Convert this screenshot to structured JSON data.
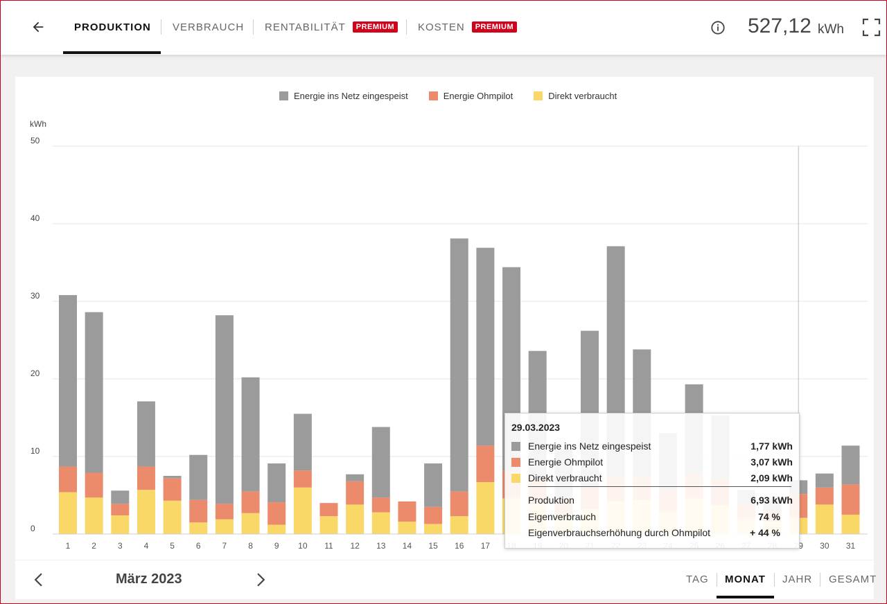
{
  "header": {
    "tabs": [
      {
        "label": "PRODUKTION",
        "badge": ""
      },
      {
        "label": "VERBRAUCH",
        "badge": ""
      },
      {
        "label": "RENTABILITÄT",
        "badge": "PREMIUM"
      },
      {
        "label": "KOSTEN",
        "badge": "PREMIUM"
      }
    ],
    "total_value": "527,12",
    "total_unit": "kWh"
  },
  "legend": [
    {
      "label": "Energie ins Netz eingespeist",
      "color": "#9b9b9b"
    },
    {
      "label": "Energie Ohmpilot",
      "color": "#ec8a6c"
    },
    {
      "label": "Direkt verbraucht",
      "color": "#f9d867"
    }
  ],
  "chart_data": {
    "type": "bar",
    "stacked": true,
    "ylabel": "kWh",
    "ylim": [
      0,
      50
    ],
    "yticks": [
      "0",
      "10",
      "20",
      "30",
      "40",
      "50"
    ],
    "categories": [
      "1",
      "2",
      "3",
      "4",
      "5",
      "6",
      "7",
      "8",
      "9",
      "10",
      "11",
      "12",
      "13",
      "14",
      "15",
      "16",
      "17",
      "18",
      "19",
      "20",
      "21",
      "22",
      "23",
      "24",
      "25",
      "26",
      "27",
      "28",
      "29",
      "30",
      "31"
    ],
    "series": [
      {
        "name": "Direkt verbraucht",
        "color": "#f9d867",
        "values": [
          5.4,
          4.7,
          2.4,
          5.7,
          4.3,
          1.5,
          1.9,
          2.7,
          1.2,
          6.0,
          2.3,
          3.8,
          2.8,
          1.6,
          1.3,
          2.3,
          6.7,
          4.6,
          3.9,
          2.6,
          3.2,
          4.2,
          4.4,
          2.8,
          4.6,
          3.7,
          2.0,
          1.6,
          2.09,
          3.8,
          2.5
        ]
      },
      {
        "name": "Energie Ohmpilot",
        "color": "#ec8a6c",
        "values": [
          3.3,
          3.2,
          1.5,
          3.0,
          2.9,
          2.9,
          2.0,
          2.8,
          2.9,
          2.2,
          1.7,
          3.0,
          1.9,
          2.6,
          2.2,
          3.2,
          4.7,
          3.6,
          3.1,
          2.1,
          2.9,
          3.3,
          3.1,
          2.9,
          3.2,
          3.4,
          1.8,
          1.4,
          3.07,
          2.2,
          3.9
        ]
      },
      {
        "name": "Energie ins Netz eingespeist",
        "color": "#9b9b9b",
        "values": [
          22.1,
          20.7,
          1.7,
          8.4,
          0.3,
          5.8,
          24.3,
          14.7,
          5.0,
          7.3,
          0.0,
          0.9,
          9.1,
          0.0,
          5.6,
          32.6,
          25.5,
          26.2,
          16.6,
          6.2,
          20.1,
          29.6,
          16.3,
          7.3,
          11.5,
          8.2,
          1.9,
          1.6,
          1.77,
          1.8,
          5.0
        ]
      }
    ]
  },
  "tooltip": {
    "date": "29.03.2023",
    "rows": [
      {
        "label": "Energie ins Netz eingespeist",
        "value": "1,77 kWh",
        "color": "#9b9b9b"
      },
      {
        "label": "Energie Ohmpilot",
        "value": "3,07 kWh",
        "color": "#ec8a6c"
      },
      {
        "label": "Direkt verbraucht",
        "value": "2,09 kWh",
        "color": "#f9d867"
      }
    ],
    "summary": [
      {
        "label": "Produktion",
        "value": "6,93 kWh"
      },
      {
        "label": "Eigenverbrauch",
        "value": "74 %"
      },
      {
        "label": "Eigenverbrauchserhöhung durch Ohmpilot",
        "value": "+ 44 %"
      }
    ]
  },
  "footer": {
    "month": "März 2023",
    "ranges": [
      "TAG",
      "MONAT",
      "JAHR",
      "GESAMT"
    ],
    "active_range": "MONAT"
  }
}
